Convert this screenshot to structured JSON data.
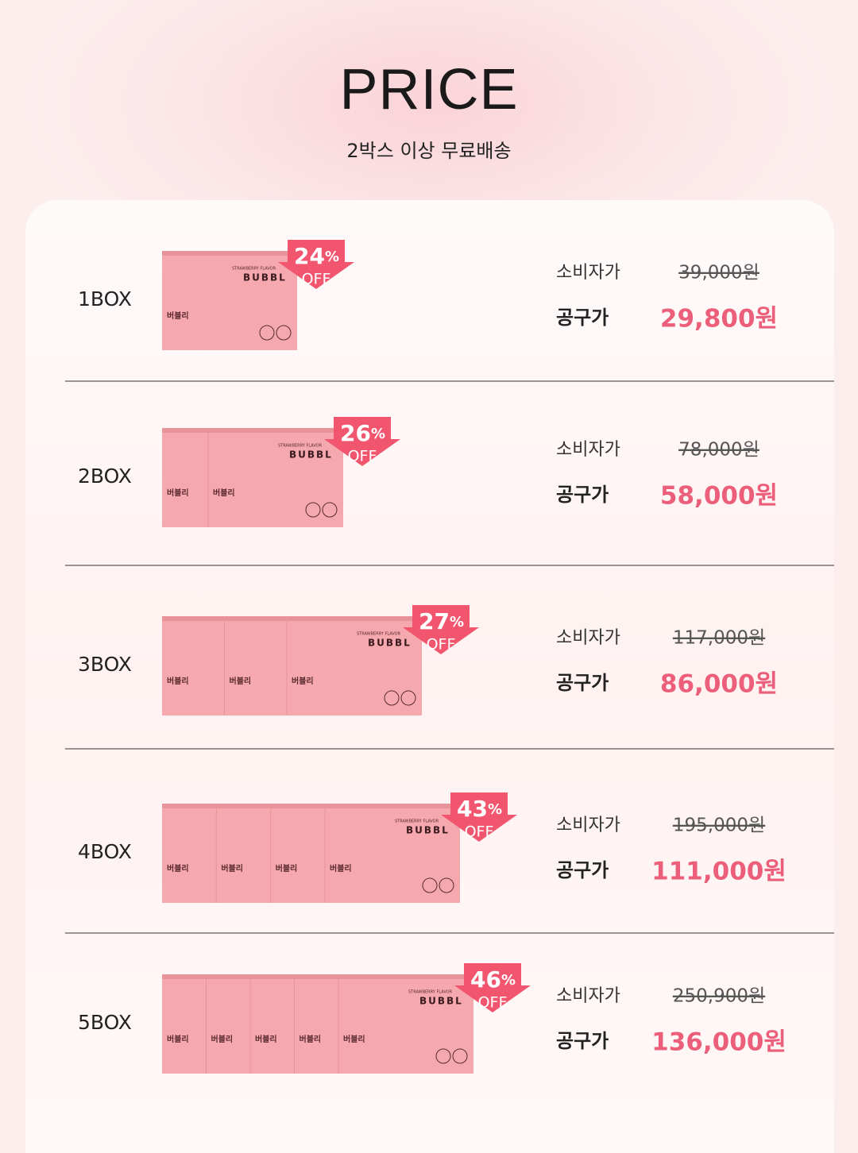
{
  "header": {
    "title": "PRICE",
    "subtitle": "2박스 이상 무료배송"
  },
  "product": {
    "flavor": "STRAWBERRY FLAVOR",
    "brand": "BUBBL",
    "name": "버블리"
  },
  "percent_sign": "%",
  "off_label": "OFF",
  "consumer_label": "소비자가",
  "group_label": "공구가",
  "rows": [
    {
      "label": "1BOX",
      "boxes": 1,
      "discount": "24",
      "consumer_price": "39,000원",
      "group_price": "29,800원"
    },
    {
      "label": "2BOX",
      "boxes": 2,
      "discount": "26",
      "consumer_price": "78,000원",
      "group_price": "58,000원"
    },
    {
      "label": "3BOX",
      "boxes": 3,
      "discount": "27",
      "consumer_price": "117,000원",
      "group_price": "86,000원"
    },
    {
      "label": "4BOX",
      "boxes": 4,
      "discount": "43",
      "consumer_price": "195,000원",
      "group_price": "111,000원"
    },
    {
      "label": "5BOX",
      "boxes": 5,
      "discount": "46",
      "consumer_price": "250,900원",
      "group_price": "136,000원"
    }
  ]
}
